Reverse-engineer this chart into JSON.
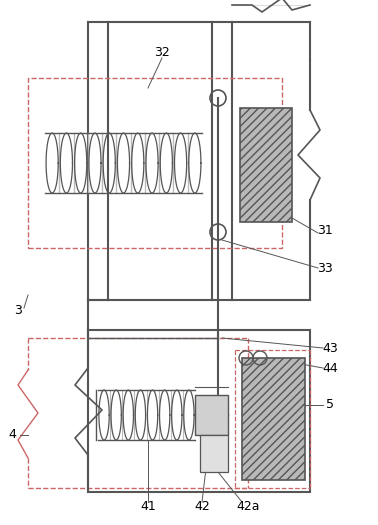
{
  "bg_color": "#ffffff",
  "lc": "#666666",
  "dc": "#555555",
  "dashed_color": "#cc6666",
  "gray_fill": "#b8b8b8",
  "light_gray": "#d0d0d0",
  "figsize": [
    3.78,
    5.25
  ],
  "dpi": 100
}
